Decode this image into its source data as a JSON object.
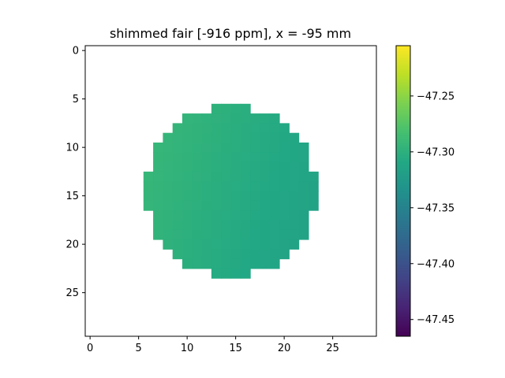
{
  "chart_data": {
    "type": "heatmap",
    "title": "shimmed fair [-916 ppm], x = -95 mm",
    "xlabel": "",
    "ylabel": "",
    "grid": false,
    "x_range": [
      -0.5,
      29.5
    ],
    "y_range": [
      29.5,
      -0.5
    ],
    "x_ticks": [
      0,
      5,
      10,
      15,
      20,
      25
    ],
    "y_ticks": [
      0,
      5,
      10,
      15,
      20,
      25
    ],
    "colormap": "viridis",
    "colorbar": {
      "range": [
        -47.465,
        -47.205
      ],
      "ticks": [
        -47.25,
        -47.3,
        -47.35,
        -47.4,
        -47.45
      ],
      "tick_labels": [
        "−47.25",
        "−47.30",
        "−47.35",
        "−47.40",
        "−47.45"
      ]
    },
    "rows": [
      {
        "row": 6,
        "col_start": 13,
        "col_end": 16
      },
      {
        "row": 7,
        "col_start": 10,
        "col_end": 19
      },
      {
        "row": 8,
        "col_start": 9,
        "col_end": 20
      },
      {
        "row": 9,
        "col_start": 8,
        "col_end": 21
      },
      {
        "row": 10,
        "col_start": 7,
        "col_end": 22
      },
      {
        "row": 11,
        "col_start": 7,
        "col_end": 22
      },
      {
        "row": 12,
        "col_start": 7,
        "col_end": 22
      },
      {
        "row": 13,
        "col_start": 6,
        "col_end": 23
      },
      {
        "row": 14,
        "col_start": 6,
        "col_end": 23
      },
      {
        "row": 15,
        "col_start": 6,
        "col_end": 23
      },
      {
        "row": 16,
        "col_start": 6,
        "col_end": 23
      },
      {
        "row": 17,
        "col_start": 7,
        "col_end": 22
      },
      {
        "row": 18,
        "col_start": 7,
        "col_end": 22
      },
      {
        "row": 19,
        "col_start": 7,
        "col_end": 22
      },
      {
        "row": 20,
        "col_start": 8,
        "col_end": 21
      },
      {
        "row": 21,
        "col_start": 9,
        "col_end": 20
      },
      {
        "row": 22,
        "col_start": 10,
        "col_end": 19
      },
      {
        "row": 23,
        "col_start": 13,
        "col_end": 16
      }
    ],
    "value_model": {
      "center": [
        15,
        15
      ],
      "base": -47.305,
      "x_gradient": 0.0012,
      "y_gradient": -0.0004
    }
  }
}
